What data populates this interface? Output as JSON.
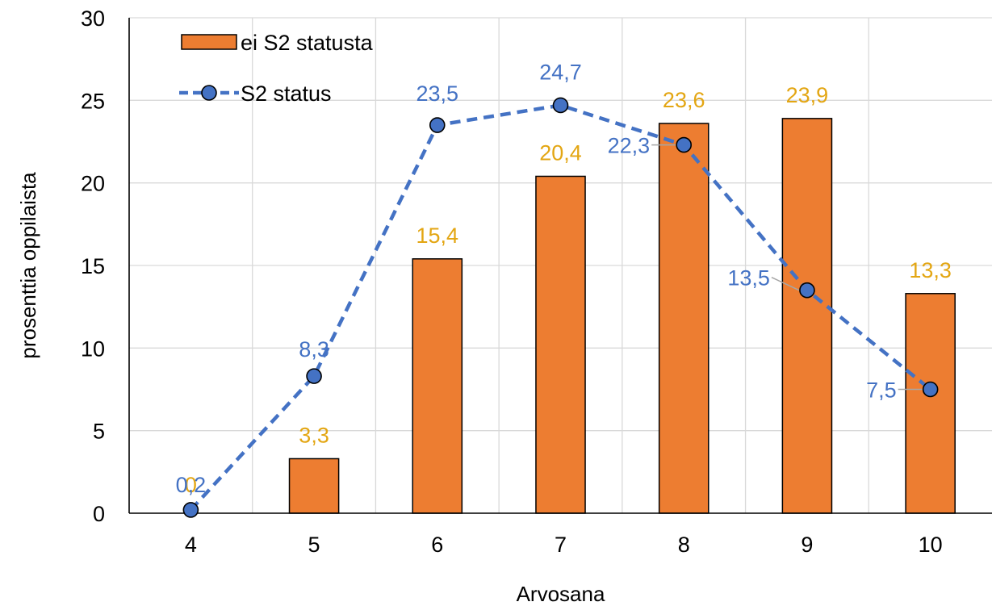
{
  "chart_data": {
    "type": "bar",
    "title": "",
    "xlabel": "Arvosana",
    "ylabel": "prosenttia oppilaista",
    "ylim": [
      0,
      30
    ],
    "yticks": [
      "0",
      "5",
      "10",
      "15",
      "20",
      "25",
      "30"
    ],
    "categories": [
      "4",
      "5",
      "6",
      "7",
      "8",
      "9",
      "10"
    ],
    "grid": true,
    "legend_position": "top-left",
    "series": [
      {
        "name": "ei S2 statusta",
        "type": "bar",
        "color": "#ED7D31",
        "label_color": "#E3A613",
        "values": [
          0,
          3.3,
          15.4,
          20.4,
          23.6,
          23.9,
          13.3
        ],
        "labels": [
          "0",
          "3,3",
          "15,4",
          "20,4",
          "23,6",
          "23,9",
          "13,3"
        ]
      },
      {
        "name": "S2 status",
        "type": "line",
        "style": "dashed",
        "marker": "circle",
        "color": "#4472C4",
        "label_color": "#4472C4",
        "values": [
          0.2,
          8.3,
          23.5,
          24.7,
          22.3,
          13.5,
          7.5
        ],
        "labels": [
          "0,2",
          "8,3",
          "23,5",
          "24,7",
          "22,3",
          "13,5",
          "7,5"
        ]
      }
    ]
  }
}
